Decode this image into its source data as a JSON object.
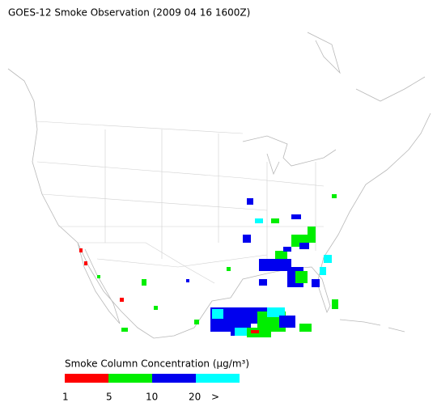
{
  "title": "GOES-12 Smoke Observation (2009 04 16  1600Z)",
  "legend": {
    "title": "Smoke Column Concentration (μg/m³)",
    "colors": [
      "#ff0000",
      "#00ee00",
      "#0000ee",
      "#00ffff"
    ],
    "labels": [
      "1",
      "5",
      "10",
      "20",
      ">"
    ]
  }
}
